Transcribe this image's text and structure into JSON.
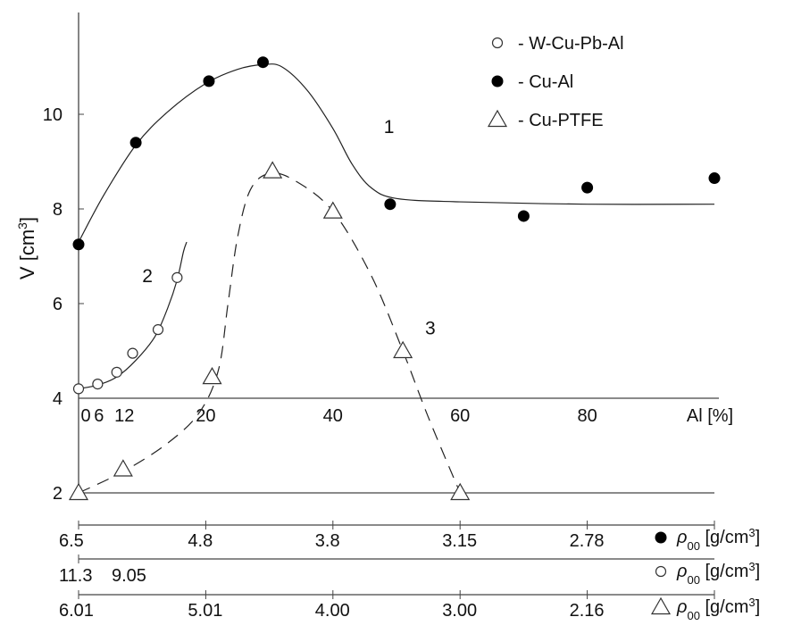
{
  "chart_data": {
    "type": "scatter",
    "xlabel": "Al [%]",
    "ylabel": "V [cm3]",
    "ylim": [
      2,
      12
    ],
    "xlim": [
      0,
      100
    ],
    "x_ticks": [
      {
        "value": 0,
        "label": "0"
      },
      {
        "value": 20,
        "label": "20"
      },
      {
        "value": 40,
        "label": "40"
      },
      {
        "value": 60,
        "label": "60"
      },
      {
        "value": 80,
        "label": "80"
      }
    ],
    "x_ticks_small": [
      {
        "value": 3.2,
        "label": "6"
      },
      {
        "value": 7.2,
        "label": "12"
      }
    ],
    "y_ticks": [
      2,
      4,
      6,
      8,
      10
    ],
    "grid": false,
    "legend_position": "top-right",
    "series": [
      {
        "name": "W-Cu-Pb-Al",
        "marker": "open-circle",
        "curve_label": "2",
        "line_style": "solid",
        "points": [
          [
            0,
            4.2
          ],
          [
            3,
            4.3
          ],
          [
            6,
            4.55
          ],
          [
            8.5,
            4.95
          ],
          [
            12.5,
            5.45
          ],
          [
            15.5,
            6.55
          ]
        ],
        "curve": [
          [
            0,
            4.2
          ],
          [
            3,
            4.28
          ],
          [
            6,
            4.45
          ],
          [
            9,
            4.8
          ],
          [
            12,
            5.3
          ],
          [
            14,
            5.9
          ],
          [
            15.5,
            6.5
          ],
          [
            16.5,
            7.1
          ],
          [
            17,
            7.3
          ]
        ]
      },
      {
        "name": "Cu-Al",
        "marker": "filled-circle",
        "curve_label": "1",
        "line_style": "solid",
        "points": [
          [
            0,
            7.25
          ],
          [
            9,
            9.4
          ],
          [
            20.5,
            10.7
          ],
          [
            29,
            11.1
          ],
          [
            49,
            8.1
          ],
          [
            70,
            7.85
          ],
          [
            80,
            8.45
          ],
          [
            100,
            8.65
          ]
        ],
        "curve": [
          [
            0,
            7.3
          ],
          [
            4,
            8.3
          ],
          [
            9,
            9.35
          ],
          [
            14,
            10.05
          ],
          [
            20,
            10.65
          ],
          [
            25,
            10.95
          ],
          [
            29,
            11.05
          ],
          [
            32,
            11.0
          ],
          [
            36,
            10.5
          ],
          [
            40,
            9.7
          ],
          [
            43,
            8.95
          ],
          [
            46,
            8.45
          ],
          [
            50,
            8.22
          ],
          [
            60,
            8.15
          ],
          [
            80,
            8.1
          ],
          [
            100,
            8.1
          ]
        ]
      },
      {
        "name": "Cu-PTFE",
        "marker": "open-triangle",
        "curve_label": "3",
        "line_style": "dashed",
        "points": [
          [
            0,
            2.0
          ],
          [
            7,
            2.5
          ],
          [
            21,
            4.45
          ],
          [
            30.5,
            8.8
          ],
          [
            40,
            7.95
          ],
          [
            51,
            5.0
          ],
          [
            60,
            2.0
          ]
        ],
        "curve": [
          [
            0,
            2.0
          ],
          [
            7,
            2.45
          ],
          [
            14,
            3.05
          ],
          [
            19,
            3.7
          ],
          [
            22,
            4.6
          ],
          [
            23.5,
            6.0
          ],
          [
            25,
            7.4
          ],
          [
            27,
            8.4
          ],
          [
            30,
            8.75
          ],
          [
            34,
            8.6
          ],
          [
            40,
            7.95
          ],
          [
            46,
            6.6
          ],
          [
            51,
            5.0
          ],
          [
            55,
            3.6
          ],
          [
            60,
            2.0
          ]
        ]
      }
    ],
    "curve_labels": [
      {
        "text": "1",
        "x": 48,
        "y": 9.6
      },
      {
        "text": "2",
        "x": 10,
        "y": 6.45
      },
      {
        "text": "3",
        "x": 54.5,
        "y": 5.35
      }
    ],
    "secondary_axes": [
      {
        "marker": "filled-circle",
        "label": "ρ00 [g/cm3]",
        "ticks": [
          {
            "value": 0,
            "label": "6.5"
          },
          {
            "value": 20,
            "label": "4.8"
          },
          {
            "value": 40,
            "label": "3.8"
          },
          {
            "value": 60,
            "label": "3.15"
          },
          {
            "value": 80,
            "label": "2.78"
          }
        ]
      },
      {
        "marker": "open-circle",
        "label": "ρ00 [g/cm3]",
        "ticks": [
          {
            "value": 0,
            "label": "11.3"
          },
          {
            "value": 8,
            "label": "9.05"
          }
        ]
      },
      {
        "marker": "open-triangle",
        "label": "ρ00 [g/cm3]",
        "ticks": [
          {
            "value": 0,
            "label": "6.01"
          },
          {
            "value": 20,
            "label": "5.01"
          },
          {
            "value": 40,
            "label": "4.00"
          },
          {
            "value": 60,
            "label": "3.00"
          },
          {
            "value": 80,
            "label": "2.16"
          }
        ]
      }
    ]
  }
}
